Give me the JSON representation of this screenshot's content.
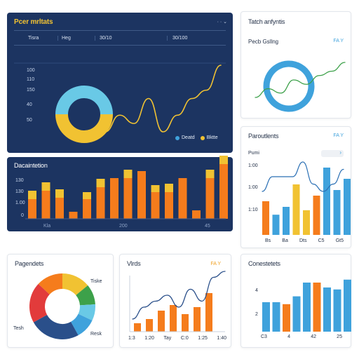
{
  "colors": {
    "dark_panel": "#1c3461",
    "orange": "#f57c1c",
    "yellow": "#f1c232",
    "blue": "#3fa2dc",
    "light_blue": "#69c9e6",
    "green": "#3da14a",
    "red": "#e23b3b",
    "navy": "#2a4f8a",
    "purple": "#c0397c"
  },
  "panel1": {
    "title": "Pcer mrltats",
    "controls": "· · ⌄",
    "tabs": [
      "Tisra",
      "Heg",
      "30/10",
      "30/100"
    ],
    "y_ticks": [
      "100",
      "110",
      "150",
      "40",
      "50"
    ],
    "legend": [
      {
        "label": "Deatd",
        "color": "#3fa2dc"
      },
      {
        "label": "Bktte",
        "color": "#f1c232"
      }
    ]
  },
  "panel2": {
    "title": "Tatch anfyntis",
    "subtitle": "Pecb Gsllng",
    "badge": "FA Y"
  },
  "panel3": {
    "title": "Paroutlents",
    "badge": "FA Y",
    "subtitle": "Pumi",
    "y_ticks": [
      "1:00",
      "1:00",
      "1:10"
    ],
    "x_ticks": [
      "Bs",
      "Ba",
      "Dts",
      "C5",
      "Gt5"
    ]
  },
  "panel4": {
    "title": "Dacaintetion",
    "y_ticks": [
      "130",
      "130",
      "1.00",
      "0"
    ],
    "x_ticks": [
      "Kla",
      "200",
      "45"
    ]
  },
  "panel5": {
    "title": "Pagendets",
    "labels": [
      "Tiske",
      "Tesh",
      "Resk"
    ]
  },
  "panel6": {
    "title": "Vlrds",
    "badge": "FA Y",
    "x_ticks": [
      "1:3",
      "1:20",
      "Tay",
      "C:0",
      "1:25",
      "1:40"
    ]
  },
  "panel7": {
    "title": "Conestetets",
    "y_ticks": [
      "4",
      "2"
    ],
    "x_ticks": [
      "C3",
      "4",
      "42",
      "25"
    ]
  },
  "chart_data": [
    {
      "type": "pie",
      "panel": "panel1",
      "values": [
        50,
        50
      ],
      "colors": [
        "#69c9e6",
        "#f1c232"
      ]
    },
    {
      "type": "line",
      "panel": "panel1",
      "y": [
        1,
        3,
        2,
        5,
        1,
        3,
        5,
        6,
        9
      ]
    },
    {
      "type": "bar",
      "panel": "panel4",
      "series": [
        {
          "name": "",
          "values": [
            28,
            40,
            30,
            10,
            28,
            45,
            58,
            58,
            68,
            38,
            38,
            58,
            12,
            58,
            78
          ]
        },
        {
          "name": "",
          "values": [
            12,
            12,
            12,
            0,
            10,
            12,
            0,
            12,
            0,
            10,
            12,
            0,
            0,
            12,
            12
          ]
        }
      ]
    },
    {
      "type": "pie",
      "panel": "panel2",
      "values": [
        100
      ],
      "colors": [
        "#3fa2dc"
      ]
    },
    {
      "type": "line",
      "panel": "panel2",
      "y": [
        1,
        3,
        2,
        5,
        4,
        6,
        7,
        9
      ]
    },
    {
      "type": "bar",
      "panel": "panel3",
      "series": [
        {
          "name": "",
          "values": [
            30,
            18,
            25,
            45,
            22,
            35,
            60,
            40,
            50
          ]
        }
      ],
      "colors": [
        "#f57c1c",
        "#3fa2dc",
        "#3fa2dc",
        "#f1c232",
        "#f1c232",
        "#f57c1c",
        "#3fa2dc",
        "#3fa2dc",
        "#3fa2dc"
      ]
    },
    {
      "type": "line",
      "panel": "panel3",
      "y": [
        4,
        6,
        6,
        6,
        8,
        5,
        4,
        5,
        7
      ]
    },
    {
      "type": "pie",
      "panel": "panel5",
      "values": [
        14,
        10,
        8,
        10,
        25,
        20,
        13
      ],
      "colors": [
        "#f1c232",
        "#3da14a",
        "#69c9e6",
        "#3fa2dc",
        "#2a4f8a",
        "#e23b3b",
        "#f57c1c"
      ]
    },
    {
      "type": "bar",
      "panel": "panel6",
      "values": [
        12,
        18,
        30,
        38,
        25,
        35,
        55
      ],
      "colors": [
        "#f57c1c",
        "#f57c1c",
        "#f57c1c",
        "#f57c1c",
        "#f57c1c",
        "#f57c1c",
        "#f57c1c"
      ]
    },
    {
      "type": "line",
      "panel": "panel6",
      "y": [
        2,
        4,
        5,
        6,
        4,
        7,
        5,
        9,
        10
      ]
    },
    {
      "type": "bar",
      "panel": "panel7",
      "values": [
        3,
        3,
        2.8,
        3.6,
        5,
        5,
        4.5,
        4.3,
        5.3
      ],
      "colors": [
        "#3fa2dc",
        "#3fa2dc",
        "#f57c1c",
        "#3fa2dc",
        "#3fa2dc",
        "#f57c1c",
        "#3fa2dc",
        "#3fa2dc",
        "#3fa2dc"
      ]
    }
  ]
}
